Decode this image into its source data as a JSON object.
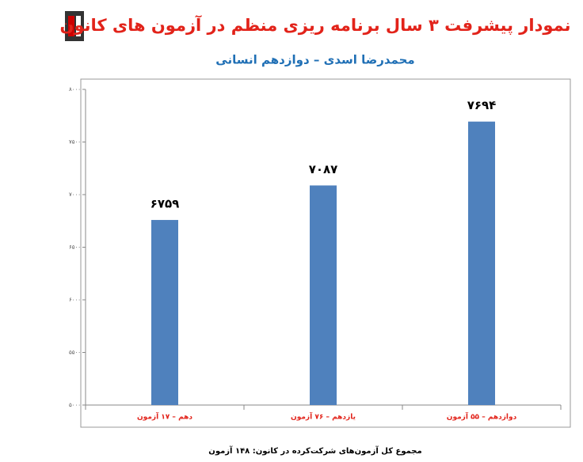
{
  "chart_data": {
    "type": "bar",
    "title": "نمودار پیشرفت ۳ سال برنامه ریزی منظم در آزمون های کانون",
    "subtitle": "محمدرضا اسدی – دوازدهم انسانی",
    "categories": [
      "دهم – ۱۷ آزمون",
      "یازدهم – ۷۶ آزمون",
      "دوازدهم – ۵۵ آزمون"
    ],
    "values": [
      6759,
      7087,
      7694
    ],
    "value_labels": [
      "۶۷۵۹",
      "۷۰۸۷",
      "۷۶۹۴"
    ],
    "color": "#4f81bd",
    "ylim": [
      5000,
      8000
    ],
    "yticks": [
      {
        "value": 5000,
        "label": "۵۰۰۰"
      },
      {
        "value": 5500,
        "label": "۵۵۰۰"
      },
      {
        "value": 6000,
        "label": "۶۰۰۰"
      },
      {
        "value": 6500,
        "label": "۶۵۰۰"
      },
      {
        "value": 7000,
        "label": "۷۰۰۰"
      },
      {
        "value": 7500,
        "label": "۷۵۰۰"
      },
      {
        "value": 8000,
        "label": "۸۰۰۰"
      }
    ],
    "grid": false,
    "footer": "مجموع کل آزمون‌های شرکت‌کرده در کانون: ۱۴۸ آزمون"
  }
}
